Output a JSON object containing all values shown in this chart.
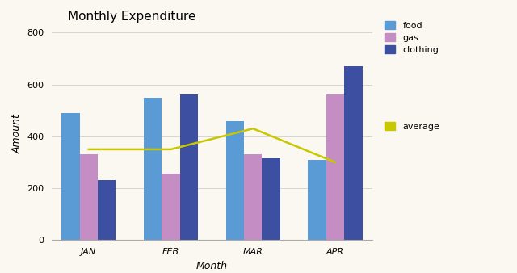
{
  "title": "Monthly Expenditure",
  "xlabel": "Month",
  "ylabel": "Amount",
  "months": [
    "JAN",
    "FEB",
    "MAR",
    "APR"
  ],
  "food": [
    490,
    550,
    460,
    310
  ],
  "gas": [
    330,
    255,
    330,
    560
  ],
  "clothing": [
    230,
    560,
    315,
    670
  ],
  "averages": [
    350,
    350,
    430,
    300
  ],
  "food_color": "#5b9bd5",
  "gas_color": "#c48ec4",
  "clothing_color": "#3d4fa0",
  "average_color": "#c8c800",
  "background_color": "#faf8f0",
  "ylim": [
    0,
    820
  ],
  "yticks": [
    0,
    200,
    400,
    600,
    800
  ],
  "bar_width": 0.22,
  "title_fontsize": 11,
  "axis_label_fontsize": 9,
  "tick_fontsize": 8,
  "grid_color": "#d0d0d0"
}
